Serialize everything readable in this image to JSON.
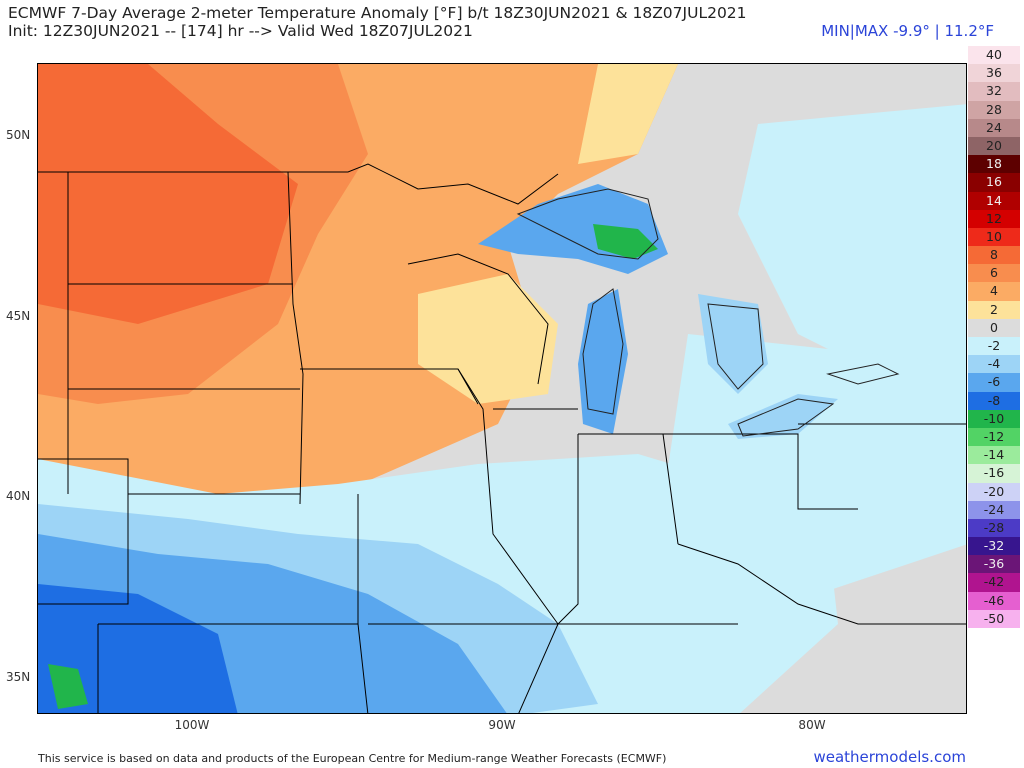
{
  "header": {
    "title": "ECMWF 7-Day Average 2-meter Temperature Anomaly [°F] b/t 18Z30JUN2021 & 18Z07JUL2021",
    "subtitle": "Init: 12Z30JUN2021 -- [174] hr --> Valid Wed 18Z07JUL2021",
    "minmax": "MIN|MAX -9.9° | 11.2°F"
  },
  "axes": {
    "lat_labels": [
      "50N",
      "45N",
      "40N",
      "35N"
    ],
    "lon_labels": [
      "100W",
      "90W",
      "80W"
    ]
  },
  "colorbar": {
    "levels": [
      {
        "label": "40",
        "color": "#fbe4ec"
      },
      {
        "label": "36",
        "color": "#f0d4d8"
      },
      {
        "label": "32",
        "color": "#e2bcbf"
      },
      {
        "label": "28",
        "color": "#cfa4a4"
      },
      {
        "label": "24",
        "color": "#b7898a"
      },
      {
        "label": "20",
        "color": "#8e6466"
      },
      {
        "label": "18",
        "color": "#5d0000"
      },
      {
        "label": "16",
        "color": "#8a0000"
      },
      {
        "label": "14",
        "color": "#b00000"
      },
      {
        "label": "12",
        "color": "#d40000"
      },
      {
        "label": "10",
        "color": "#ee2a1a"
      },
      {
        "label": "8",
        "color": "#f56a36"
      },
      {
        "label": "6",
        "color": "#f88d4e"
      },
      {
        "label": "4",
        "color": "#fbab64"
      },
      {
        "label": "2",
        "color": "#fde29a"
      },
      {
        "label": "0",
        "color": "#dcdcdc"
      },
      {
        "label": "-2",
        "color": "#c9f1fb"
      },
      {
        "label": "-4",
        "color": "#9dd4f6"
      },
      {
        "label": "-6",
        "color": "#5aa7ee"
      },
      {
        "label": "-8",
        "color": "#1e6ee3"
      },
      {
        "label": "-10",
        "color": "#21b54b"
      },
      {
        "label": "-12",
        "color": "#52d365"
      },
      {
        "label": "-14",
        "color": "#9beb9c"
      },
      {
        "label": "-16",
        "color": "#d6f3d6"
      },
      {
        "label": "-20",
        "color": "#cdd2f6"
      },
      {
        "label": "-24",
        "color": "#8d93ea"
      },
      {
        "label": "-28",
        "color": "#4c3bc6"
      },
      {
        "label": "-32",
        "color": "#37158e"
      },
      {
        "label": "-36",
        "color": "#6b1577"
      },
      {
        "label": "-42",
        "color": "#b0148f"
      },
      {
        "label": "-46",
        "color": "#e55fd0"
      },
      {
        "label": "-50",
        "color": "#f7b1ee"
      }
    ]
  },
  "footer": {
    "credit": "This service is based on data and products of the European Centre for Medium-range Weather Forecasts (ECMWF)",
    "brand": "weathermodels.com"
  }
}
